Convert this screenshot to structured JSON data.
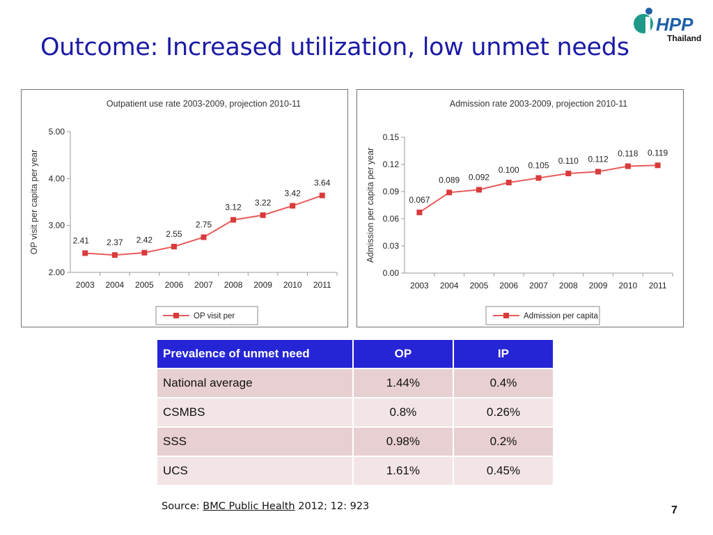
{
  "slide": {
    "title": "Outcome: Increased utilization, low unmet needs",
    "logo_text": "HPP",
    "logo_subtext": "Thailand",
    "page_number": "7"
  },
  "colors": {
    "title": "#1a1aa6",
    "series": "#e85a5a",
    "marker": "#d93a3a",
    "table_header": "#2525d6",
    "table_row_a": "#e8cfd1",
    "table_row_b": "#f3e5e6",
    "logo_green": "#1f9a8a",
    "logo_blue": "#1e5fa8"
  },
  "chart_data": [
    {
      "type": "line",
      "title": "Outpatient use rate 2003-2009, projection 2010-11",
      "xlabel": "",
      "ylabel": "OP visit per capita per year",
      "categories": [
        "2003",
        "2004",
        "2005",
        "2006",
        "2007",
        "2008",
        "2009",
        "2010",
        "2011"
      ],
      "series": [
        {
          "name": "OP visit per",
          "values": [
            2.41,
            2.37,
            2.42,
            2.55,
            2.75,
            3.12,
            3.22,
            3.42,
            3.64
          ],
          "labels": [
            "2.41",
            "2.37",
            "2.42",
            "2.55",
            "2.75",
            "3.12",
            "3.22",
            "3.42",
            "3.64"
          ]
        }
      ],
      "ylim": [
        2.0,
        5.0
      ],
      "yticks": [
        "2.00",
        "3.00",
        "4.00",
        "5.00"
      ],
      "grid": false,
      "legend": "bottom"
    },
    {
      "type": "line",
      "title": "Admission rate 2003-2009, projection 2010-11",
      "xlabel": "",
      "ylabel": "Admission per capita per year",
      "categories": [
        "2003",
        "2004",
        "2005",
        "2006",
        "2007",
        "2008",
        "2009",
        "2010",
        "2011"
      ],
      "series": [
        {
          "name": "Admission per capita",
          "values": [
            0.067,
            0.089,
            0.092,
            0.1,
            0.105,
            0.11,
            0.112,
            0.118,
            0.119
          ],
          "labels": [
            "0.067",
            "0.089",
            "0.092",
            "0.100",
            "0.105",
            "0.110",
            "0.112",
            "0.118",
            "0.119"
          ]
        }
      ],
      "ylim": [
        0.0,
        0.15
      ],
      "yticks": [
        "0.00",
        "0.03",
        "0.06",
        "0.09",
        "0.12",
        "0.15"
      ],
      "grid": false,
      "legend": "bottom"
    }
  ],
  "table": {
    "headers": [
      "Prevalence of unmet need",
      "OP",
      "IP"
    ],
    "rows": [
      [
        "National average",
        "1.44%",
        "0.4%"
      ],
      [
        "CSMBS",
        "0.8%",
        "0.26%"
      ],
      [
        "SSS",
        "0.98%",
        "0.2%"
      ],
      [
        "UCS",
        "1.61%",
        "0.45%"
      ]
    ]
  },
  "source": {
    "prefix": "Source: ",
    "link_text": "BMC Public Health",
    "suffix": " 2012; 12: 923"
  }
}
